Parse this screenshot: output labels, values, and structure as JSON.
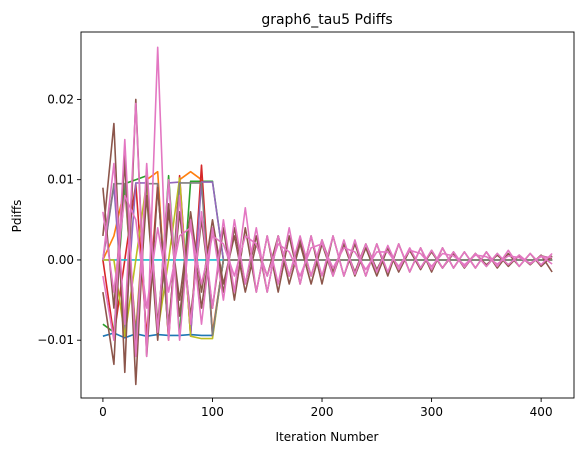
{
  "chart_data": {
    "type": "line",
    "title": "graph6_tau5 Pdiffs",
    "xlabel": "Iteration Number",
    "ylabel": "Pdiffs",
    "xlim": [
      -20,
      430
    ],
    "ylim": [
      -0.0172,
      0.0284
    ],
    "xticks": [
      0,
      100,
      200,
      300,
      400
    ],
    "xtick_labels": [
      "0",
      "100",
      "200",
      "300",
      "400"
    ],
    "yticks": [
      -0.01,
      0.0,
      0.01,
      0.02
    ],
    "ytick_labels": [
      "−0.01",
      "0.00",
      "0.01",
      "0.02"
    ],
    "grid": false,
    "legend": "none",
    "series_colors": [
      "#1f77b4",
      "#ff7f0e",
      "#2ca02c",
      "#d62728",
      "#9467bd",
      "#8c564b",
      "#e377c2",
      "#7f7f7f",
      "#bcbd22",
      "#17becf"
    ],
    "sample_interval": 10,
    "series": [
      {
        "color": "#1f77b4",
        "x": [
          0,
          10,
          20,
          30,
          40,
          50,
          60,
          70,
          80,
          90,
          100,
          110,
          410
        ],
        "values": [
          -0.0095,
          -0.0091,
          -0.0097,
          -0.0092,
          -0.0095,
          -0.0093,
          -0.0094,
          -0.0094,
          -0.0093,
          -0.0094,
          -0.0094,
          0.0,
          0.0
        ]
      },
      {
        "color": "#ff7f0e",
        "x": [
          0,
          10,
          20,
          30,
          40,
          50,
          60,
          70,
          80,
          90,
          100,
          110,
          410
        ],
        "values": [
          0.0,
          0.003,
          0.009,
          -0.009,
          0.01,
          0.011,
          -0.01,
          0.01,
          0.011,
          0.01,
          -0.009,
          0.0,
          0.0
        ]
      },
      {
        "color": "#2ca02c",
        "x": [
          0,
          10,
          20,
          30,
          40,
          50,
          60,
          70,
          80,
          90,
          100,
          110,
          410
        ],
        "values": [
          -0.008,
          -0.009,
          0.0095,
          0.01,
          0.0105,
          -0.0095,
          0.0105,
          -0.0095,
          0.0098,
          0.0098,
          0.0098,
          0.0,
          0.0
        ]
      },
      {
        "color": "#d62728",
        "x": [
          0,
          10,
          20,
          30,
          40,
          50,
          60,
          70,
          80,
          90,
          100,
          110,
          410
        ],
        "values": [
          0.0,
          -0.0095,
          0.0,
          0.0095,
          -0.0095,
          0.0095,
          -0.0098,
          0.0105,
          -0.0095,
          0.0118,
          -0.0095,
          0.0,
          0.0
        ]
      },
      {
        "color": "#9467bd",
        "x": [
          0,
          10,
          20,
          30,
          40,
          50,
          60,
          70,
          80,
          90,
          100,
          110,
          410
        ],
        "values": [
          0.0,
          0.0092,
          -0.0092,
          0.0096,
          0.0096,
          -0.0094,
          0.0096,
          0.0097,
          -0.0094,
          0.0097,
          0.0097,
          0.0,
          0.0
        ]
      },
      {
        "color": "#17becf",
        "x": [
          0,
          10,
          20,
          30,
          40,
          50,
          60,
          70,
          80,
          90,
          100,
          110,
          410
        ],
        "values": [
          0.0,
          0.0,
          0.0,
          0.0,
          0.0,
          0.0,
          0.0,
          0.0,
          0.0,
          0.0,
          0.0,
          0.0,
          0.0
        ]
      },
      {
        "color": "#bcbd22",
        "x": [
          0,
          10,
          20,
          30,
          40,
          50,
          60,
          70,
          80,
          90,
          100,
          110,
          410
        ],
        "values": [
          0.0,
          0.0,
          -0.0095,
          0.0,
          0.0098,
          -0.009,
          0.0,
          0.0102,
          -0.0095,
          -0.0098,
          -0.0098,
          0.0,
          0.0
        ]
      },
      {
        "color": "#7f7f7f",
        "x": [
          0,
          10,
          20,
          30,
          40,
          50,
          60,
          70,
          80,
          90,
          100,
          110,
          410
        ],
        "values": [
          0.0,
          0.0095,
          0.0095,
          -0.0095,
          0.0095,
          0.0095,
          -0.0096,
          0.0096,
          0.0096,
          0.0096,
          -0.0094,
          0.0,
          0.0
        ]
      },
      {
        "color": "#8c564b",
        "x": [
          0,
          10,
          20,
          30,
          40,
          50,
          60,
          70,
          80,
          90,
          100,
          110,
          120,
          130,
          140,
          150,
          160,
          170,
          180,
          190,
          200,
          210,
          220,
          230,
          240,
          250,
          260,
          270,
          280,
          290,
          300,
          310,
          320,
          330,
          340,
          350,
          360,
          370,
          380,
          390,
          400,
          410
        ],
        "values": [
          0.003,
          0.017,
          -0.014,
          0.02,
          -0.012,
          0.009,
          -0.008,
          0.006,
          -0.007,
          0.005,
          -0.006,
          0.004,
          -0.005,
          0.004,
          -0.004,
          0.003,
          -0.004,
          0.003,
          -0.003,
          0.003,
          -0.003,
          0.003,
          -0.002,
          0.002,
          -0.002,
          0.002,
          -0.002,
          0.002,
          -0.0015,
          0.0015,
          -0.0015,
          0.0015,
          -0.001,
          0.001,
          -0.001,
          0.001,
          -0.001,
          0.0008,
          -0.0008,
          0.0008,
          -0.0008,
          0.0005
        ]
      },
      {
        "color": "#8c564b",
        "x": [
          0,
          10,
          20,
          30,
          40,
          50,
          60,
          70,
          80,
          90,
          100,
          110,
          120,
          130,
          140,
          150,
          160,
          170,
          180,
          190,
          200,
          210,
          220,
          230,
          240,
          250,
          260,
          270,
          280,
          290,
          300,
          310,
          320,
          330,
          340,
          350,
          360,
          370,
          380,
          390,
          400,
          410
        ],
        "values": [
          -0.004,
          -0.013,
          0.014,
          -0.0155,
          0.011,
          -0.008,
          0.007,
          -0.007,
          0.005,
          -0.006,
          0.004,
          -0.004,
          0.004,
          -0.003,
          0.003,
          -0.004,
          0.003,
          -0.003,
          0.002,
          -0.003,
          0.002,
          -0.002,
          0.002,
          -0.002,
          0.0015,
          -0.002,
          0.0015,
          -0.0015,
          0.0012,
          -0.0012,
          0.0012,
          -0.001,
          0.001,
          -0.001,
          0.0008,
          -0.0008,
          0.0008,
          -0.0008,
          0.0006,
          -0.0006,
          0.0006,
          -0.0015
        ]
      },
      {
        "color": "#8c564b",
        "x": [
          0,
          10,
          20,
          30,
          40,
          50,
          60,
          70,
          80,
          90,
          100,
          110,
          120,
          130,
          140,
          150,
          160,
          170,
          180,
          190,
          200,
          210,
          220,
          230,
          240,
          250,
          260,
          270,
          280,
          290,
          300,
          310,
          320,
          330,
          340,
          350,
          360,
          370,
          380,
          390,
          400,
          410
        ],
        "values": [
          0.009,
          -0.006,
          0.012,
          -0.011,
          0.008,
          -0.01,
          0.006,
          -0.005,
          0.006,
          -0.004,
          0.005,
          -0.003,
          0.003,
          -0.004,
          0.002,
          -0.002,
          0.003,
          -0.002,
          0.0025,
          -0.002,
          0.0025,
          -0.0015,
          0.002,
          -0.0015,
          0.002,
          -0.0012,
          0.0015,
          -0.0012,
          0.0012,
          -0.001,
          0.001,
          -0.001,
          0.0008,
          -0.0008,
          0.0008,
          -0.0006,
          0.0006,
          -0.0006,
          0.0005,
          -0.0005,
          0.0005,
          0.0002
        ]
      },
      {
        "color": "#e377c2",
        "x": [
          0,
          10,
          20,
          30,
          40,
          50,
          60,
          70,
          80,
          90,
          100,
          110,
          120,
          130,
          140,
          150,
          160,
          170,
          180,
          190,
          200,
          210,
          220,
          230,
          240,
          250,
          260,
          270,
          280,
          290,
          300,
          310,
          320,
          330,
          340,
          350,
          360,
          370,
          380,
          390,
          400,
          410
        ],
        "values": [
          0.0,
          0.012,
          -0.008,
          0.0195,
          -0.012,
          0.0265,
          -0.01,
          0.008,
          -0.008,
          0.006,
          -0.006,
          0.005,
          -0.004,
          0.0065,
          -0.004,
          0.003,
          -0.003,
          0.004,
          -0.003,
          0.003,
          -0.002,
          0.003,
          -0.002,
          0.0025,
          -0.002,
          0.002,
          -0.0015,
          0.002,
          -0.0015,
          0.0015,
          -0.0012,
          0.0015,
          -0.001,
          0.001,
          -0.001,
          0.001,
          -0.0008,
          0.0012,
          -0.0008,
          0.0008,
          -0.0006,
          0.0008
        ]
      },
      {
        "color": "#e377c2",
        "x": [
          0,
          10,
          20,
          30,
          40,
          50,
          60,
          70,
          80,
          90,
          100,
          110,
          120,
          130,
          140,
          150,
          160,
          170,
          180,
          190,
          200,
          210,
          220,
          230,
          240,
          250,
          260,
          270,
          280,
          290,
          300,
          310,
          320,
          330,
          340,
          350,
          360,
          370,
          380,
          390,
          400,
          410
        ],
        "values": [
          -0.002,
          -0.01,
          0.015,
          -0.012,
          0.012,
          -0.009,
          0.01,
          -0.01,
          0.005,
          -0.008,
          0.004,
          -0.005,
          0.005,
          -0.003,
          0.004,
          -0.004,
          0.003,
          -0.002,
          0.003,
          -0.002,
          0.0025,
          -0.002,
          0.0025,
          -0.0018,
          0.002,
          -0.0015,
          0.0018,
          -0.0012,
          0.0015,
          -0.001,
          0.0012,
          -0.001,
          0.001,
          -0.0009,
          0.0008,
          -0.0008,
          0.0008,
          -0.0006,
          0.0006,
          -0.0005,
          0.0005,
          -0.0005
        ]
      },
      {
        "color": "#e377c2",
        "x": [
          0,
          10,
          20,
          30,
          40,
          50,
          60,
          70,
          80,
          90,
          100,
          110,
          120,
          130,
          140,
          150,
          160,
          170,
          180,
          190,
          200,
          210,
          220,
          230,
          240,
          250,
          260,
          270,
          280,
          290,
          300,
          310,
          320,
          330,
          340,
          350,
          360,
          370,
          380,
          390,
          400,
          410
        ],
        "values": [
          0.006,
          -0.004,
          0.008,
          0.005,
          -0.006,
          0.004,
          -0.004,
          0.003,
          0.004,
          -0.003,
          0.003,
          0.002,
          -0.002,
          0.003,
          0.002,
          -0.002,
          0.002,
          0.001,
          -0.002,
          0.0015,
          0.002,
          -0.001,
          0.0015,
          0.001,
          -0.0012,
          0.001,
          0.001,
          -0.0008,
          0.0012,
          0.0008,
          -0.0008,
          0.0008,
          0.0005,
          -0.0006,
          0.0006,
          0.0004,
          -0.0005,
          0.0005,
          0.0003,
          -0.0004,
          0.0004,
          0.0003
        ]
      }
    ]
  }
}
